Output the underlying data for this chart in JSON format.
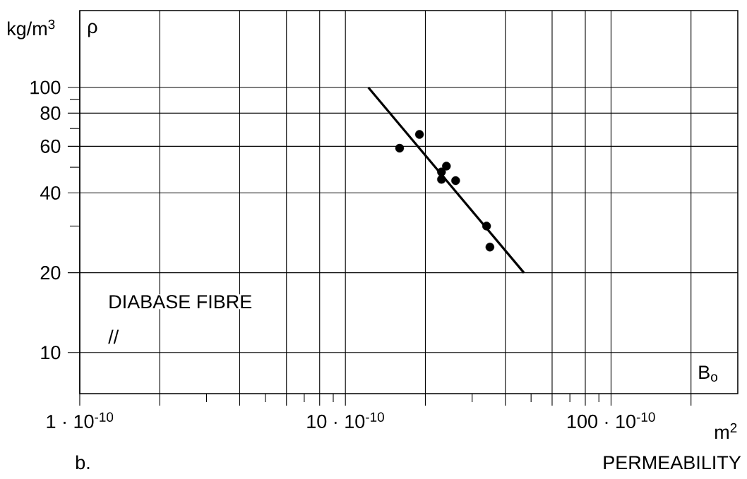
{
  "chart_data": {
    "type": "scatter",
    "xlabel": "PERMEABILITY",
    "ylabel": "ρ",
    "annotations": [
      "kg/m$^{3}$",
      "B$_{o}$",
      "DIABASE FIBRE",
      "//",
      "m$^{2}$",
      "b."
    ],
    "series": [
      {
        "marker": "circle",
        "color": "#000000",
        "x": [
          1.6e-09,
          1.9e-09,
          2.4e-09,
          2.3e-09,
          2.3e-09,
          2.6e-09,
          3.4e-09,
          3.5e-09
        ],
        "values": [
          59,
          66.5,
          50.5,
          48,
          45,
          44.5,
          30,
          25
        ]
      },
      {
        "type": "line",
        "marker": "none",
        "color": "#000000",
        "x": [
          1.22e-09,
          4.7e-09
        ],
        "values": [
          100,
          20
        ]
      }
    ],
    "log": "xy",
    "xlim": [
      1e-10,
      3e-08
    ],
    "ylim": [
      7,
      195
    ],
    "xticks": [
      {
        "value": 1e-10,
        "label": "1 · 10$^{-10}$"
      },
      {
        "value": 2e-10,
        "label": null
      },
      {
        "value": 3e-10,
        "label": null
      },
      {
        "value": 4e-10,
        "label": null
      },
      {
        "value": 5e-10,
        "label": null
      },
      {
        "value": 6e-10,
        "label": null
      },
      {
        "value": 7e-10,
        "label": null
      },
      {
        "value": 8e-10,
        "label": null
      },
      {
        "value": 9e-10,
        "label": null
      },
      {
        "value": 1e-09,
        "label": "10 · 10$^{-10}$"
      },
      {
        "value": 2e-09,
        "label": null
      },
      {
        "value": 3e-09,
        "label": null
      },
      {
        "value": 4e-09,
        "label": null
      },
      {
        "value": 5e-09,
        "label": null
      },
      {
        "value": 6e-09,
        "label": null
      },
      {
        "value": 7e-09,
        "label": null
      },
      {
        "value": 8e-09,
        "label": null
      },
      {
        "value": 9e-09,
        "label": null
      },
      {
        "value": 1e-08,
        "label": "100 · 10$^{-10}$"
      },
      {
        "value": 2e-08,
        "label": null
      }
    ],
    "yticks": [
      10,
      20,
      {
        "value": 30,
        "label": null
      },
      40,
      {
        "value": 50,
        "label": null
      },
      60,
      {
        "value": 70,
        "label": null
      },
      80,
      {
        "value": 90,
        "label": null
      },
      100
    ],
    "grid": true
  }
}
